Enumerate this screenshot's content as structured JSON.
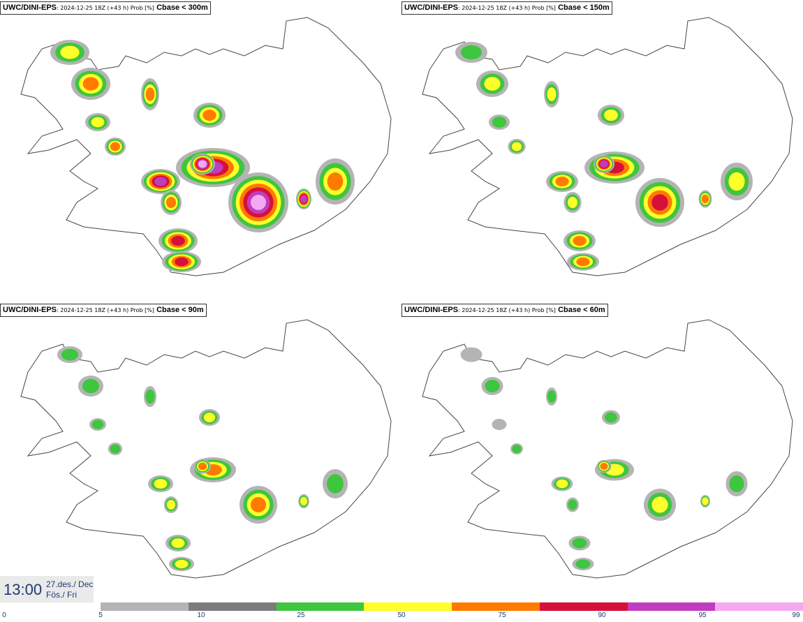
{
  "panels": [
    {
      "source": "UWC/DINI-EPS",
      "run": ": 2024-12-25 18Z (+43 h) Prob [%]",
      "param": "Cbase < 300m"
    },
    {
      "source": "UWC/DINI-EPS",
      "run": ": 2024-12-25 18Z (+43 h) Prob [%]",
      "param": "Cbase < 150m"
    },
    {
      "source": "UWC/DINI-EPS",
      "run": ": 2024-12-25 18Z (+43 h) Prob [%]",
      "param": "Cbase < 90m"
    },
    {
      "source": "UWC/DINI-EPS",
      "run": ": 2024-12-25 18Z (+43 h) Prob [%]",
      "param": "Cbase < 60m"
    }
  ],
  "timestamp": {
    "time": "13:00",
    "date_line1": "27.des./ Dec",
    "date_line2": "Fös./ Fri"
  },
  "legend": {
    "ticks": [
      "0",
      "5",
      "10",
      "25",
      "50",
      "75",
      "90",
      "95",
      "99"
    ],
    "colors": [
      "#b4b4b4",
      "#7c7c7c",
      "#3ec63e",
      "#ffff2a",
      "#ff7a00",
      "#d6103a",
      "#c03cc0",
      "#f4a8f0"
    ]
  }
}
